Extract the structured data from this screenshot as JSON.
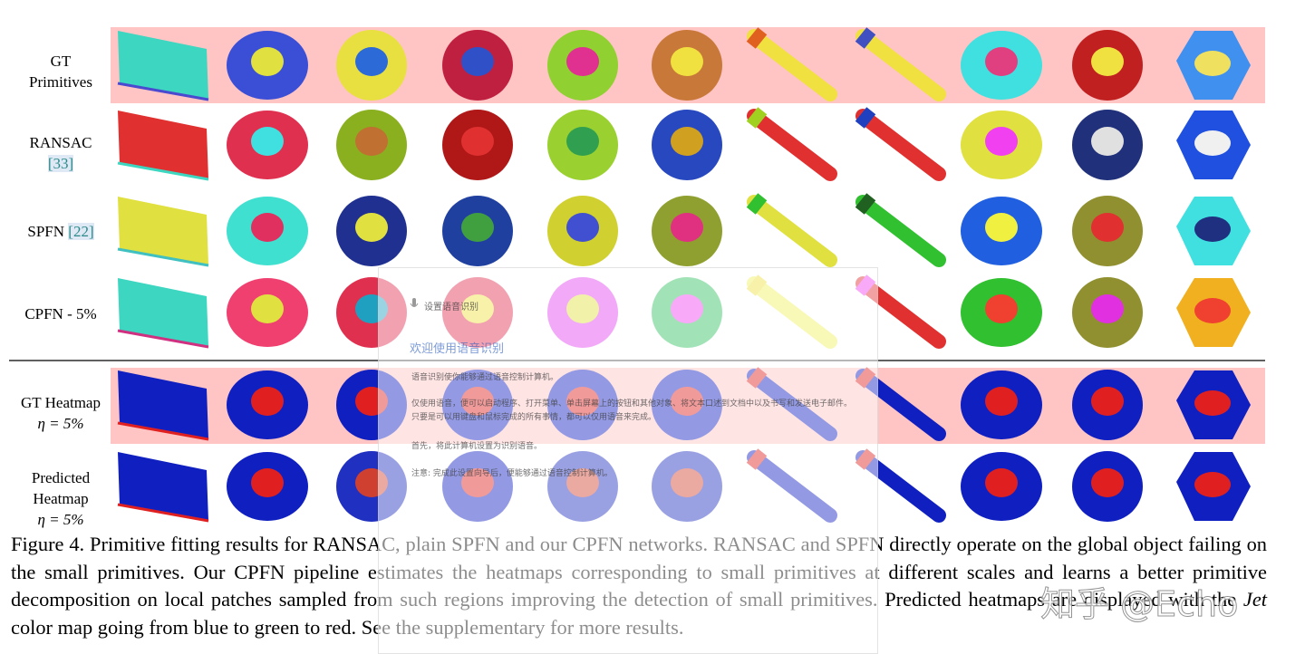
{
  "figure": {
    "rows": [
      {
        "lines": [
          {
            "text": "GT"
          },
          {
            "text": "Primitives"
          }
        ]
      },
      {
        "lines": [
          {
            "text": "RANSAC"
          },
          {
            "cite": "[33]"
          }
        ]
      },
      {
        "lines": [
          {
            "text": "SPFN",
            "cite": "[22]"
          }
        ]
      },
      {
        "lines": [
          {
            "text": "CPFN - 5%"
          }
        ]
      },
      {
        "lines": [
          {
            "text": "GT Heatmap"
          },
          {
            "math": "η = 5%"
          }
        ]
      },
      {
        "lines": [
          {
            "text": "Predicted"
          },
          {
            "text": "Heatmap"
          },
          {
            "math": "η = 5%"
          }
        ]
      }
    ],
    "caption": [
      "Figure 4. Primitive fitting results for RANSAC, plain SPFN and our CPFN networks. RANSAC and SPFN directly operate on the global object failing on the small primitives. Our CPFN pipeline estimates the heatmaps corresponding to small primitives at different scales and learns a better primitive decomposition on local patches sampled from such regions improving the detection of small primitives. Predicted heatmaps are displayed with the ",
      "Jet",
      " color map going from blue to green to red. See the supplementary for more results."
    ]
  },
  "dialog": {
    "title": "设置语音识别",
    "heading": "欢迎使用语音识别",
    "paragraphs": [
      "语音识别使你能够通过语音控制计算机。",
      "仅使用语音，便可以启动程序、打开菜单、单击屏幕上的按钮和其他对象、将文本口述到文档中以及书写和发送电子邮件。只要是可以用键盘和鼠标完成的所有事情，都可以仅用语音来完成。",
      "首先，将此计算机设置为识别语音。",
      "注意: 完成此设置向导后，便能够通过语音控制计算机。"
    ]
  },
  "watermark": "知乎 @Echo"
}
